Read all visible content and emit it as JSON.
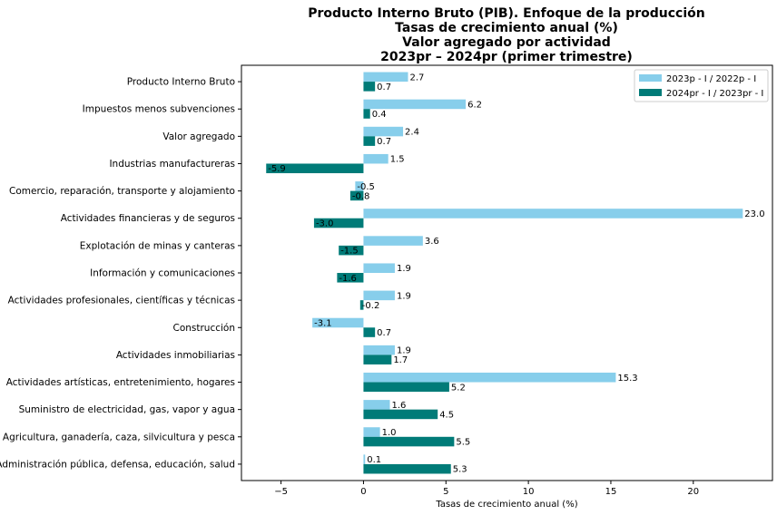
{
  "chart_data": {
    "type": "bar",
    "orientation": "horizontal",
    "title_lines": [
      "Producto Interno Bruto (PIB). Enfoque de la producción",
      "Tasas de crecimiento anual (%)",
      "Valor agregado por actividad",
      "2023pr – 2024pr (primer trimestre)"
    ],
    "xlabel": "Tasas de crecimiento anual (%)",
    "ylabel": "",
    "xlim": [
      -7.4,
      24.8
    ],
    "xticks": [
      -5,
      0,
      5,
      10,
      15,
      20
    ],
    "xtick_labels": [
      "−5",
      "0",
      "5",
      "10",
      "15",
      "20"
    ],
    "grid": false,
    "legend_position": "top-right",
    "categories": [
      "Producto Interno Bruto",
      "Impuestos menos subvenciones",
      "Valor agregado",
      "Industrias manufactureras",
      "Comercio, reparación, transporte y alojamiento",
      "Actividades financieras y de seguros",
      "Explotación de minas y canteras",
      "Información y comunicaciones",
      "Actividades profesionales, científicas y técnicas",
      "Construcción",
      "Actividades inmobiliarias",
      "Actividades artísticas, entretenimiento, hogares",
      "Suministro de electricidad, gas, vapor y agua",
      "Agricultura, ganadería, caza, silvicultura y pesca",
      "Administración pública, defensa, educación, salud"
    ],
    "series": [
      {
        "name": "2023p - I / 2022p - I",
        "color": "#87ceeb",
        "values": [
          2.7,
          6.2,
          2.4,
          1.5,
          -0.5,
          23.0,
          3.6,
          1.9,
          1.9,
          -3.1,
          1.9,
          15.3,
          1.6,
          1.0,
          0.1
        ],
        "labels": [
          "2.7",
          "6.2",
          "2.4",
          "1.5",
          "-0.5",
          "23.0",
          "3.6",
          "1.9",
          "1.9",
          "-3.1",
          "1.9",
          "15.3",
          "1.6",
          "1.0",
          "0.1"
        ]
      },
      {
        "name": "2024pr - I / 2023pr - I",
        "color": "#007b78",
        "values": [
          0.7,
          0.4,
          0.7,
          -5.9,
          -0.8,
          -3.0,
          -1.5,
          -1.6,
          -0.2,
          0.7,
          1.7,
          5.2,
          4.5,
          5.5,
          5.3
        ],
        "labels": [
          "0.7",
          "0.4",
          "0.7",
          "-5.9",
          "-0.8",
          "-3.0",
          "-1.5",
          "-1.6",
          "-0.2",
          "0.7",
          "1.7",
          "5.2",
          "4.5",
          "5.5",
          "5.3"
        ]
      }
    ]
  }
}
